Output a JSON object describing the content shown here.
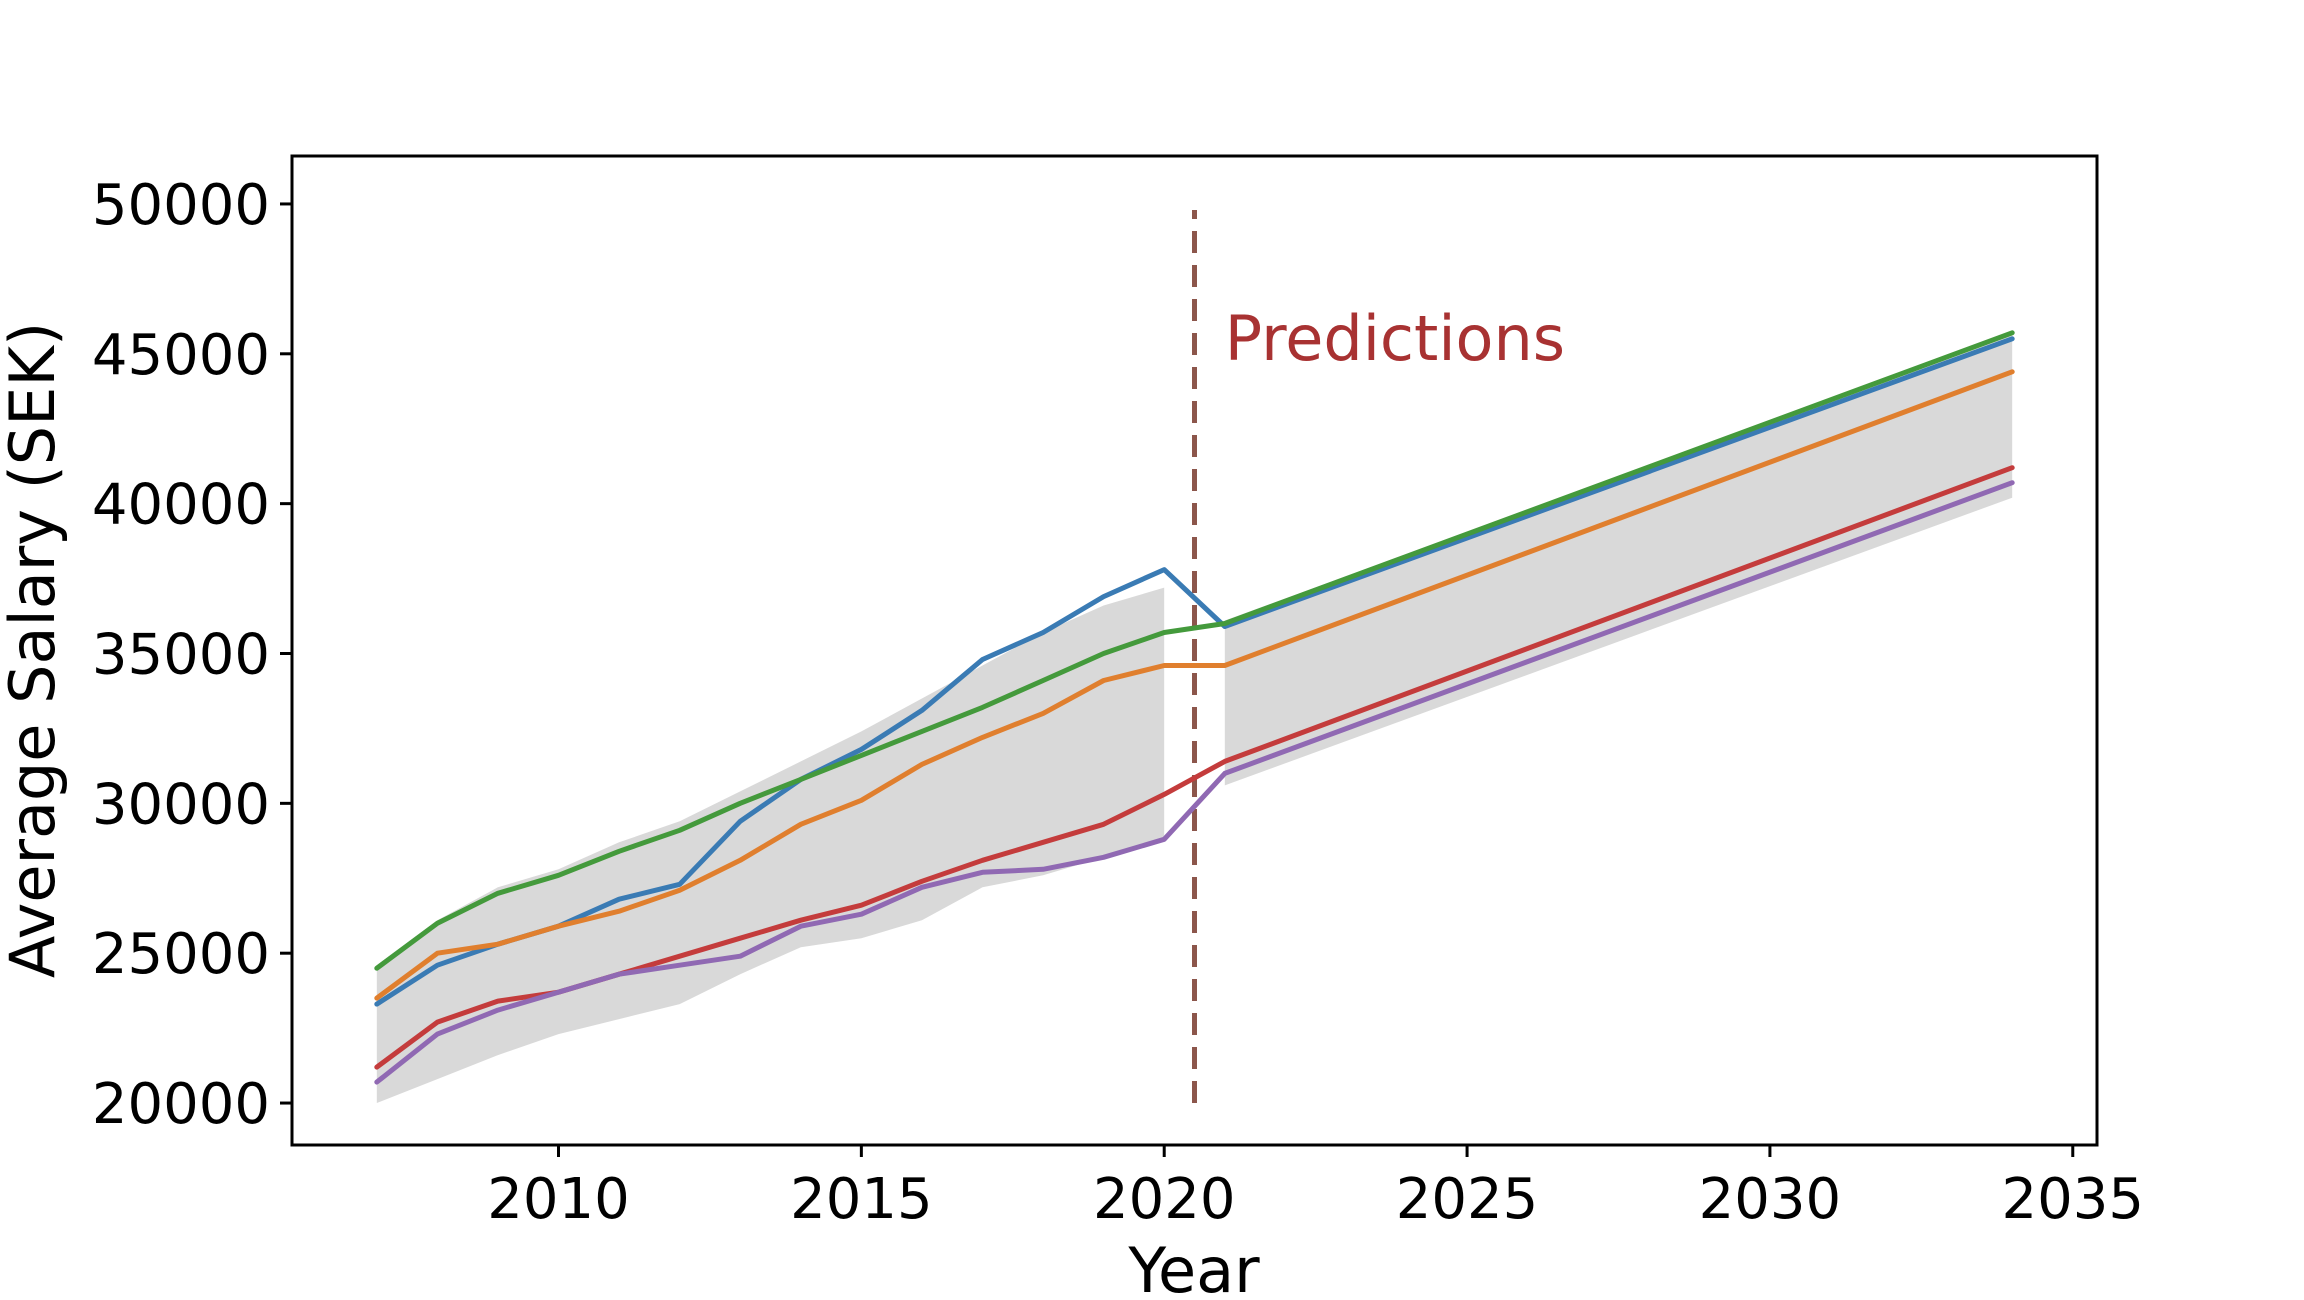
{
  "chart_data": {
    "type": "line",
    "title": "",
    "xlabel": "Year",
    "ylabel": "Average Salary (SEK)",
    "xlim": [
      2005.6,
      2035.4
    ],
    "ylim": [
      18600,
      51600
    ],
    "xticks": [
      2010,
      2015,
      2020,
      2025,
      2030,
      2035
    ],
    "yticks": [
      20000,
      25000,
      30000,
      35000,
      40000,
      45000,
      50000
    ],
    "grid": false,
    "legend": "none",
    "annotation": {
      "text": "Predictions",
      "x": 2021.0,
      "y": 44800,
      "color": "#a83232"
    },
    "divider": {
      "x": 2020.5,
      "y_from": 20000,
      "y_to": 49800,
      "color": "#8c564b",
      "style": "dashed"
    },
    "background_band": {
      "color": "#d9d9d9",
      "historical": {
        "x": [
          2007,
          2008,
          2009,
          2010,
          2011,
          2012,
          2013,
          2014,
          2015,
          2016,
          2017,
          2018,
          2019,
          2020
        ],
        "upper": [
          24600,
          26100,
          27200,
          27800,
          28700,
          29400,
          30400,
          31400,
          32400,
          33500,
          34600,
          35700,
          36600,
          37200
        ],
        "lower": [
          20000,
          20800,
          21600,
          22300,
          22800,
          23300,
          24300,
          25200,
          25500,
          26100,
          27200,
          27600,
          28200,
          28800
        ]
      },
      "prediction": {
        "x": [
          2021,
          2034
        ],
        "upper": [
          36100,
          45700
        ],
        "lower": [
          30600,
          40200
        ]
      }
    },
    "series": [
      {
        "color": "#3a7bb4",
        "x": [
          2007,
          2008,
          2009,
          2010,
          2011,
          2012,
          2013,
          2014,
          2015,
          2016,
          2017,
          2018,
          2019,
          2020,
          2021,
          2034
        ],
        "values": [
          23300,
          24600,
          25300,
          25900,
          26800,
          27300,
          29400,
          30800,
          31800,
          33100,
          34800,
          35700,
          36900,
          37800,
          35900,
          45500
        ]
      },
      {
        "color": "#e07f2e",
        "x": [
          2007,
          2008,
          2009,
          2010,
          2011,
          2012,
          2013,
          2014,
          2015,
          2016,
          2017,
          2018,
          2019,
          2020,
          2021,
          2034
        ],
        "values": [
          23500,
          25000,
          25300,
          25900,
          26400,
          27100,
          28100,
          29300,
          30100,
          31300,
          32200,
          33000,
          34100,
          34600,
          34600,
          44400
        ]
      },
      {
        "color": "#449a3c",
        "x": [
          2007,
          2008,
          2009,
          2010,
          2011,
          2012,
          2013,
          2014,
          2015,
          2016,
          2017,
          2018,
          2019,
          2020,
          2021,
          2034
        ],
        "values": [
          24500,
          26000,
          27000,
          27600,
          28400,
          29100,
          30000,
          30800,
          31600,
          32400,
          33200,
          34100,
          35000,
          35700,
          36000,
          45700
        ]
      },
      {
        "color": "#c43c3c",
        "x": [
          2007,
          2008,
          2009,
          2010,
          2011,
          2012,
          2013,
          2014,
          2015,
          2016,
          2017,
          2018,
          2019,
          2020,
          2021,
          2034
        ],
        "values": [
          21200,
          22700,
          23400,
          23700,
          24300,
          24900,
          25500,
          26100,
          26600,
          27400,
          28100,
          28700,
          29300,
          30300,
          31400,
          41200
        ]
      },
      {
        "color": "#9069b3",
        "x": [
          2007,
          2008,
          2009,
          2010,
          2011,
          2012,
          2013,
          2014,
          2015,
          2016,
          2017,
          2018,
          2019,
          2020,
          2021,
          2034
        ],
        "values": [
          20700,
          22300,
          23100,
          23700,
          24300,
          24600,
          24900,
          25900,
          26300,
          27200,
          27700,
          27800,
          28200,
          28800,
          31000,
          40700
        ]
      }
    ]
  }
}
